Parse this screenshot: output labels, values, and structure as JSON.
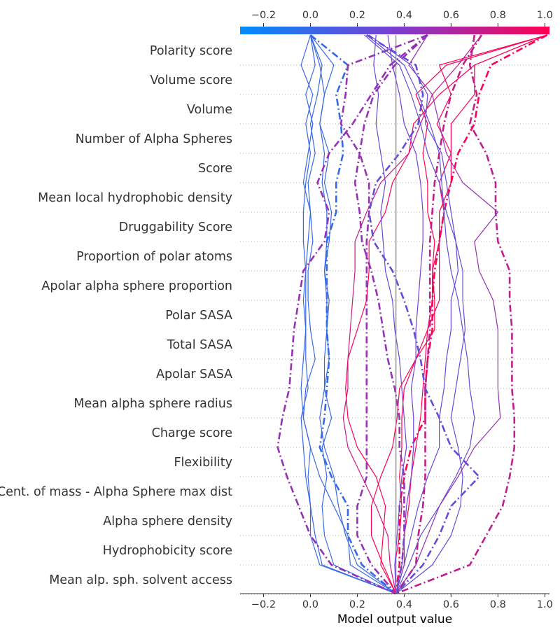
{
  "chart_data": {
    "type": "line",
    "subtype": "shap-decision-plot",
    "title": "",
    "xlabel": "Model output value",
    "ylabel": "",
    "xlim": [
      -0.3,
      1.02
    ],
    "xticks": [
      -0.2,
      0.0,
      0.2,
      0.4,
      0.6,
      0.8,
      1.0
    ],
    "xtick_labels": [
      "−0.2",
      "0.0",
      "0.2",
      "0.4",
      "0.6",
      "0.8",
      "1.0"
    ],
    "base_value": 0.365,
    "colorbar": {
      "stops": [
        "#008bfb",
        "#ff0052"
      ],
      "range": [
        -0.3,
        1.02
      ]
    },
    "features": [
      "Polarity score",
      "Volume score",
      "Volume",
      "Number of Alpha Spheres",
      "Score",
      "Mean local hydrophobic density",
      "Druggability Score",
      "Proportion of polar atoms",
      "Apolar alpha sphere proportion",
      "Polar SASA",
      "Total SASA",
      "Apolar SASA",
      "Mean alpha sphere radius",
      "Charge score",
      "Flexibility",
      "Cent. of mass - Alpha Sphere max dist",
      "Alpha sphere density",
      "Hydrophobicity score",
      "Mean alp. sph. solvent access"
    ],
    "series": [
      {
        "values": [
          0.0,
          -0.04,
          0.01,
          -0.02,
          0.0,
          -0.02,
          -0.03,
          -0.03,
          -0.02,
          -0.03,
          -0.02,
          -0.02,
          -0.01,
          -0.04,
          -0.03,
          -0.02,
          0.0,
          0.0,
          0.04,
          0.365
        ],
        "misclassified": false
      },
      {
        "values": [
          0.0,
          0.05,
          0.03,
          0.0,
          0.02,
          -0.01,
          0.0,
          0.01,
          -0.01,
          -0.01,
          0.0,
          0.02,
          -0.02,
          -0.03,
          0.0,
          -0.01,
          0.0,
          0.02,
          0.05,
          0.365
        ],
        "misclassified": false
      },
      {
        "values": [
          0.0,
          0.1,
          0.06,
          0.04,
          0.08,
          0.06,
          0.09,
          0.08,
          0.06,
          0.08,
          0.07,
          0.06,
          0.06,
          0.04,
          0.06,
          0.1,
          0.12,
          0.15,
          0.2,
          0.365
        ],
        "misclassified": false
      },
      {
        "values": [
          0.0,
          0.04,
          0.06,
          0.04,
          0.06,
          0.05,
          0.07,
          0.07,
          0.06,
          0.07,
          0.07,
          0.08,
          0.06,
          0.09,
          0.05,
          0.07,
          0.05,
          0.06,
          0.1,
          0.365
        ],
        "misclassified": false
      },
      {
        "values": [
          0.0,
          0.02,
          -0.02,
          0.01,
          -0.01,
          -0.03,
          0.0,
          -0.01,
          -0.02,
          -0.02,
          -0.02,
          -0.03,
          -0.04,
          -0.03,
          0.0,
          0.04,
          0.1,
          0.16,
          0.17,
          0.365
        ],
        "misclassified": false
      },
      {
        "values": [
          0.0,
          0.16,
          0.11,
          0.13,
          0.14,
          0.11,
          0.11,
          0.07,
          0.07,
          0.07,
          0.07,
          0.08,
          0.07,
          0.06,
          0.04,
          0.09,
          0.16,
          0.16,
          0.22,
          0.365
        ],
        "misclassified": true
      },
      {
        "values": [
          0.5,
          0.16,
          0.15,
          0.13,
          0.21,
          0.25,
          0.25,
          0.24,
          0.24,
          0.24,
          0.24,
          0.24,
          0.24,
          0.24,
          0.24,
          0.24,
          0.2,
          0.2,
          0.26,
          0.365
        ],
        "misclassified": true
      },
      {
        "values": [
          0.5,
          0.34,
          0.26,
          0.18,
          0.08,
          0.03,
          0.08,
          0.06,
          -0.03,
          -0.05,
          -0.07,
          -0.08,
          -0.09,
          -0.12,
          -0.14,
          -0.1,
          -0.05,
          0.0,
          0.09,
          0.365
        ],
        "misclassified": true
      },
      {
        "values": [
          1.01,
          0.7,
          0.55,
          0.44,
          0.42,
          0.35,
          0.32,
          0.25,
          0.25,
          0.24,
          0.2,
          0.16,
          0.15,
          0.16,
          0.2,
          0.28,
          0.32,
          0.31,
          0.3,
          0.365
        ],
        "misclassified": false
      },
      {
        "values": [
          1.01,
          0.58,
          0.45,
          0.5,
          0.48,
          0.5,
          0.5,
          0.53,
          0.52,
          0.53,
          0.53,
          0.45,
          0.38,
          0.37,
          0.35,
          0.3,
          0.26,
          0.26,
          0.31,
          0.365
        ],
        "misclassified": false
      },
      {
        "values": [
          1.01,
          0.55,
          0.6,
          0.54,
          0.6,
          0.55,
          0.57,
          0.55,
          0.55,
          0.55,
          0.5,
          0.45,
          0.4,
          0.39,
          0.39,
          0.38,
          0.39,
          0.38,
          0.36,
          0.365
        ],
        "misclassified": false
      },
      {
        "values": [
          1.01,
          0.7,
          0.7,
          0.6,
          0.6,
          0.6,
          0.55,
          0.55,
          0.52,
          0.52,
          0.5,
          0.49,
          0.48,
          0.47,
          0.45,
          0.43,
          0.42,
          0.4,
          0.4,
          0.365
        ],
        "misclassified": false
      },
      {
        "values": [
          1.01,
          0.77,
          0.72,
          0.7,
          0.63,
          0.6,
          0.57,
          0.55,
          0.53,
          0.52,
          0.52,
          0.5,
          0.49,
          0.49,
          0.43,
          0.4,
          0.38,
          0.38,
          0.38,
          0.365
        ],
        "misclassified": true
      },
      {
        "values": [
          0.73,
          0.63,
          0.52,
          0.47,
          0.42,
          0.3,
          0.24,
          0.19,
          0.19,
          0.18,
          0.17,
          0.16,
          0.16,
          0.14,
          0.16,
          0.22,
          0.28,
          0.33,
          0.34,
          0.365
        ],
        "misclassified": false
      },
      {
        "values": [
          0.73,
          0.65,
          0.6,
          0.57,
          0.55,
          0.53,
          0.52,
          0.51,
          0.51,
          0.51,
          0.51,
          0.5,
          0.49,
          0.49,
          0.49,
          0.49,
          0.48,
          0.46,
          0.45,
          0.365
        ],
        "misclassified": true
      },
      {
        "values": [
          0.7,
          0.68,
          0.71,
          0.68,
          0.75,
          0.79,
          0.79,
          0.8,
          0.85,
          0.85,
          0.86,
          0.86,
          0.86,
          0.87,
          0.87,
          0.85,
          0.82,
          0.75,
          0.68,
          0.365
        ],
        "misclassified": true
      },
      {
        "values": [
          0.5,
          0.36,
          0.27,
          0.23,
          0.21,
          0.19,
          0.21,
          0.22,
          0.26,
          0.29,
          0.31,
          0.33,
          0.36,
          0.38,
          0.38,
          0.4,
          0.4,
          0.4,
          0.39,
          0.365
        ],
        "misclassified": true
      },
      {
        "values": [
          0.28,
          0.27,
          0.29,
          0.28,
          0.3,
          0.32,
          0.3,
          0.31,
          0.32,
          0.35,
          0.36,
          0.38,
          0.39,
          0.4,
          0.41,
          0.39,
          0.38,
          0.37,
          0.36,
          0.365
        ],
        "misclassified": false
      },
      {
        "values": [
          0.33,
          0.35,
          0.38,
          0.4,
          0.45,
          0.47,
          0.48,
          0.48,
          0.47,
          0.46,
          0.45,
          0.45,
          0.43,
          0.44,
          0.44,
          0.43,
          0.41,
          0.4,
          0.39,
          0.365
        ],
        "misclassified": false
      },
      {
        "values": [
          0.23,
          0.38,
          0.43,
          0.47,
          0.5,
          0.55,
          0.58,
          0.62,
          0.63,
          0.6,
          0.6,
          0.58,
          0.57,
          0.55,
          0.55,
          0.5,
          0.46,
          0.43,
          0.4,
          0.365
        ],
        "misclassified": false
      },
      {
        "values": [
          0.24,
          0.4,
          0.46,
          0.51,
          0.55,
          0.56,
          0.57,
          0.58,
          0.6,
          0.63,
          0.65,
          0.67,
          0.68,
          0.7,
          0.68,
          0.62,
          0.55,
          0.47,
          0.42,
          0.365
        ],
        "misclassified": false
      },
      {
        "values": [
          0.5,
          0.42,
          0.52,
          0.55,
          0.58,
          0.65,
          0.8,
          0.7,
          0.72,
          0.78,
          0.8,
          0.8,
          0.8,
          0.81,
          0.7,
          0.63,
          0.55,
          0.5,
          0.45,
          0.365
        ],
        "misclassified": false
      },
      {
        "values": [
          0.24,
          0.45,
          0.48,
          0.46,
          0.38,
          0.28,
          0.25,
          0.27,
          0.35,
          0.4,
          0.44,
          0.47,
          0.49,
          0.55,
          0.6,
          0.72,
          0.6,
          0.55,
          0.48,
          0.365
        ],
        "misclassified": true
      },
      {
        "values": [
          0.25,
          0.43,
          0.5,
          0.49,
          0.56,
          0.58,
          0.6,
          0.62,
          0.65,
          0.65,
          0.66,
          0.64,
          0.62,
          0.6,
          0.63,
          0.65,
          0.64,
          0.6,
          0.52,
          0.365
        ],
        "misclassified": false
      }
    ]
  }
}
